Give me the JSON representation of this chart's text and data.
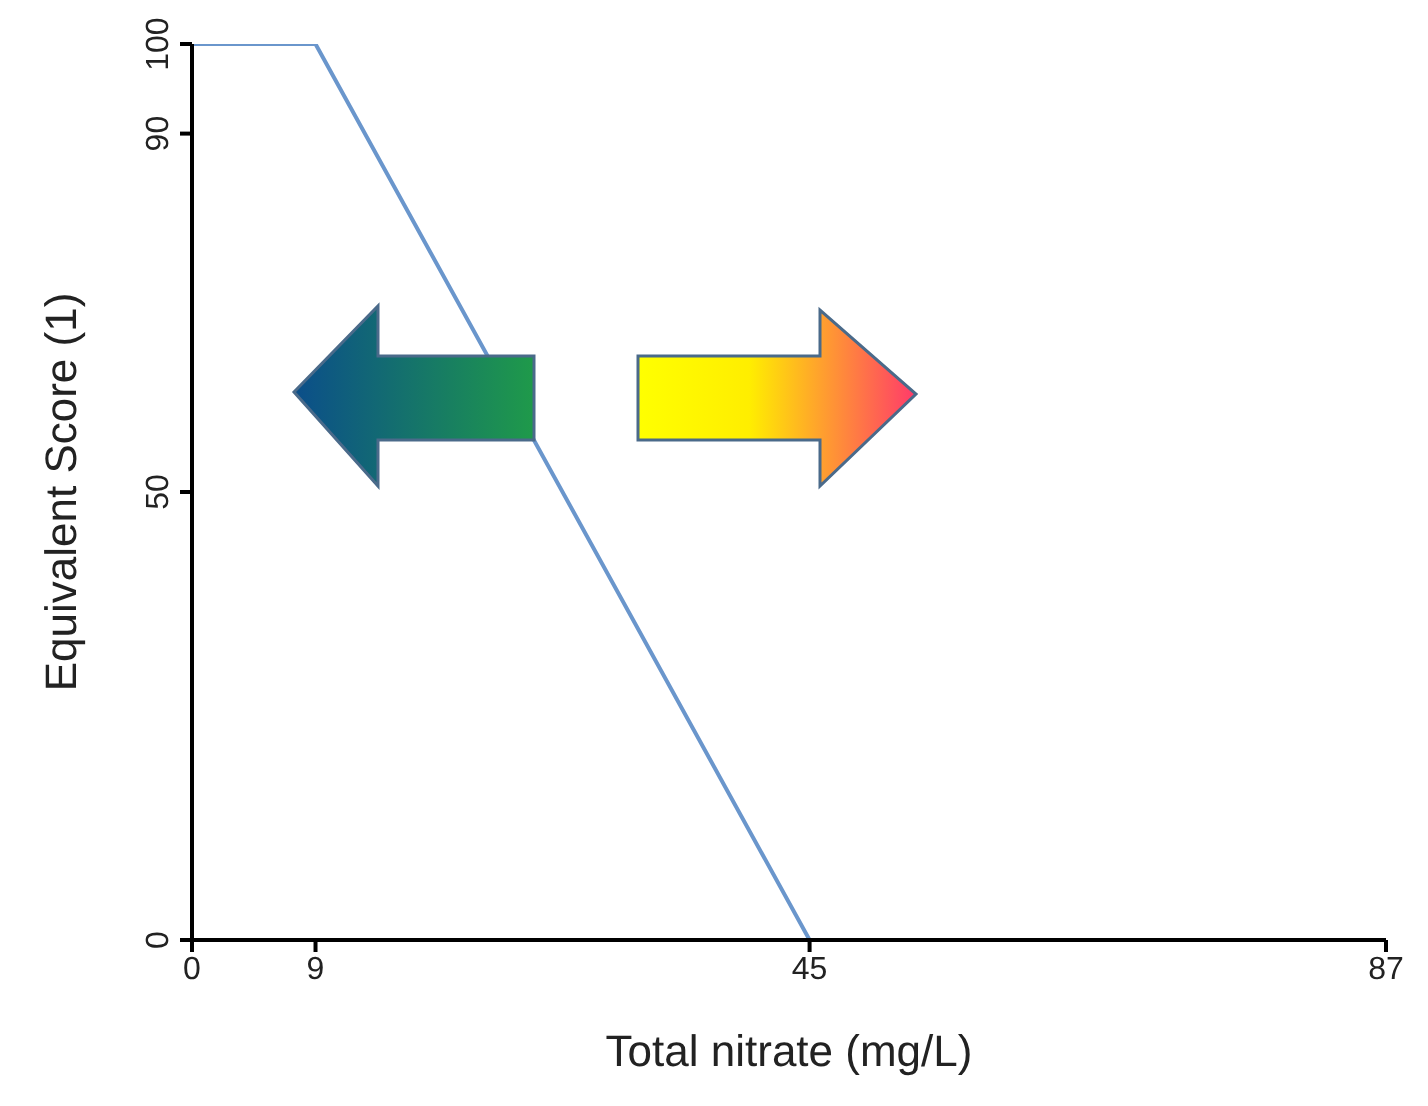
{
  "chart_data": {
    "type": "line",
    "xlabel": "Total nitrate (mg/L)",
    "ylabel": "Equivalent Score (1)",
    "x": [
      0,
      9,
      45
    ],
    "series": [
      {
        "color": "#6a96cc",
        "values": [
          100,
          100,
          0
        ]
      }
    ],
    "xlim": [
      0,
      87
    ],
    "xticks": [
      0,
      9,
      45,
      87
    ],
    "ylim": [
      0,
      100
    ],
    "yticks": [
      0,
      50,
      90,
      100
    ],
    "marker": "none",
    "line_style": "solid"
  }
}
